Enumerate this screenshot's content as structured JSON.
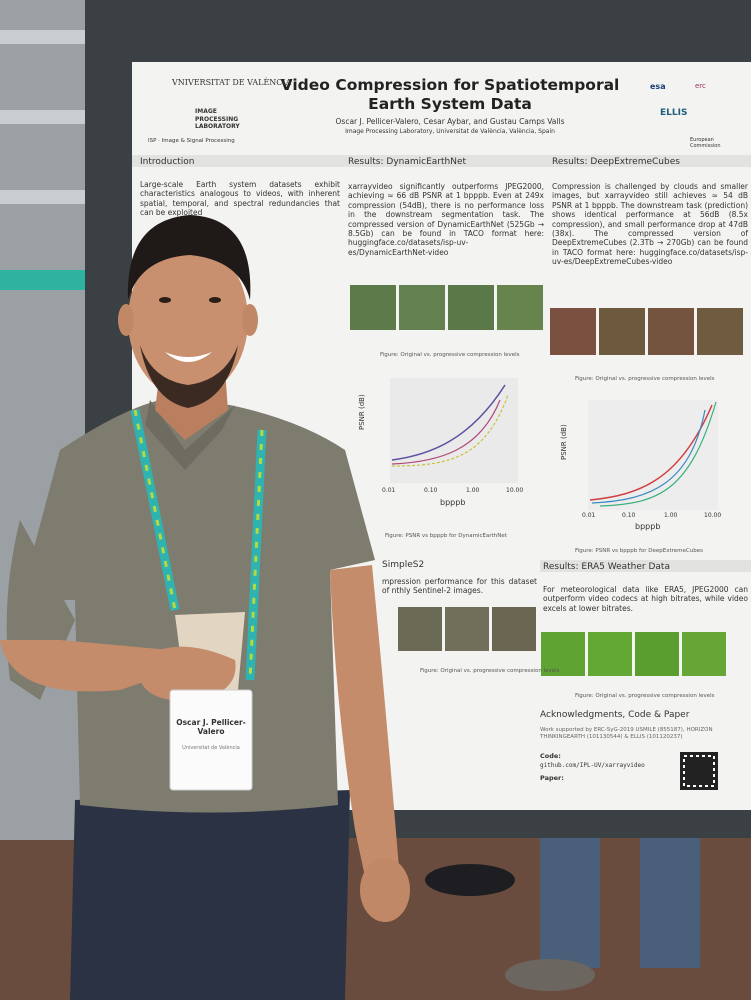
{
  "poster": {
    "title": "Video Compression for Spatiotemporal Earth System Data",
    "authors": "Oscar J. Pellicer-Valero, Cesar Aybar, and Gustau Camps Valls",
    "affiliation": "Image Processing Laboratory, Universitat de València, València, Spain",
    "logos": [
      "VNIVERSITAT DE VALÈNCIA",
      "IMAGE PROCESSING LABORATORY",
      "ISP · Image & Signal Processing",
      "esa",
      "erc",
      "ELLIS",
      "European Commission"
    ],
    "sections": [
      {
        "heading": "Introduction",
        "text": "Large-scale Earth system datasets exhibit characteristics analogous to videos, with inherent spatial, temporal, and spectral redundancies that can be exploited"
      },
      {
        "heading": "Results: DynamicEarthNet",
        "text": "xarrayvideo significantly outperforms JPEG2000, achieving ≈ 66 dB PSNR at 1 bpppb. Even at 249x compression (54dB), there is no performance loss in the downstream segmentation task. The compressed version of DynamicEarthNet (525Gb → 8.5Gb) can be found in TACO format here: huggingface.co/datasets/isp-uv-es/DynamicEarthNet-video"
      },
      {
        "heading": "Results: DeepExtremeCubes",
        "text": "Compression is challenged by clouds and smaller images, but xarrayvideo still achieves ≈ 54 dB PSNR at 1 bpppb. The downstream task (prediction) shows identical performance at 56dB (8.5x compression), and small performance drop at 47dB (38x). The compressed version of DeepExtremeCubes (2.3Tb → 270Gb) can be found in TACO format here: huggingface.co/datasets/isp-uv-es/DeepExtremeCubes-video"
      },
      {
        "heading": "SimpleS2",
        "text": "mpression performance for this dataset of nthly Sentinel-2 images."
      },
      {
        "heading": "Results: ERA5 Weather Data",
        "text": "For meteorological data like ERA5, JPEG2000 can outperform video codecs at high bitrates, while video excels at lower bitrates."
      },
      {
        "heading": "Acknowledgments, Code & Paper",
        "text": "Work supported by ERC-SyG-2019 USMILE (855187), HORIZON THINKINGEARTH (101130544) & ELLIS (101120237)"
      }
    ],
    "captions": [
      "Figure: Original vs. progressive compression levels",
      "Figure: PSNR vs bpppb for DynamicEarthNet",
      "Figure: PSNR vs bpppb for DeepExtremeCubes"
    ],
    "plot_axes": {
      "ylabel": "PSNR (dB)",
      "xlabel": "bpppb",
      "xticks": [
        "0.01",
        "0.10",
        "1.00",
        "10.00"
      ]
    },
    "code_label": "Code:",
    "code_url": "github.com/IPL-UV/xarrayvideo",
    "paper_label": "Paper:"
  },
  "badge": {
    "name": "Oscar J. Pellicer-Valero",
    "org": "Universitat de València"
  }
}
